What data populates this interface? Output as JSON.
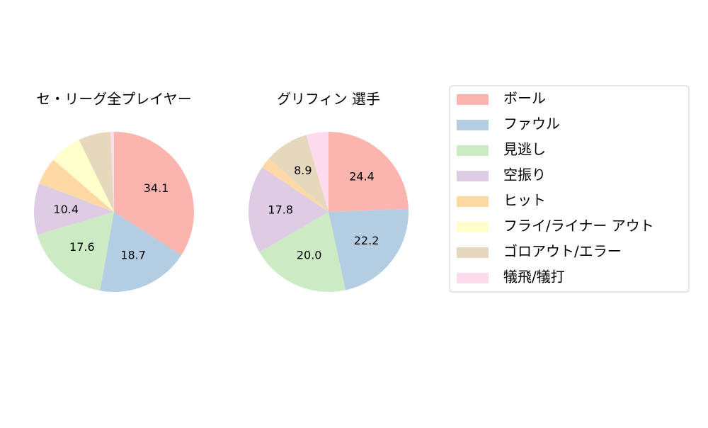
{
  "chart_data": [
    {
      "type": "pie",
      "title": "セ・リーグ全プレイヤー",
      "categories": [
        "ボール",
        "ファウル",
        "見逃し",
        "空振り",
        "ヒット",
        "フライ/ライナー アウト",
        "ゴロアウト/エラー",
        "犠飛/犠打"
      ],
      "colors": [
        "#fbb4ae",
        "#b3cde3",
        "#ccebc5",
        "#decbe4",
        "#fed9a6",
        "#ffffcc",
        "#e5d8bd",
        "#fddaec"
      ],
      "values": [
        34.1,
        18.7,
        17.6,
        10.4,
        5.5,
        6.5,
        6.5,
        0.7
      ],
      "value_labels": [
        "34.1",
        "18.7",
        "17.6",
        "10.4",
        null,
        null,
        null,
        null
      ]
    },
    {
      "type": "pie",
      "title": "グリフィン  選手",
      "values": [
        24.4,
        22.2,
        20.0,
        17.8,
        2.2,
        0,
        8.9,
        4.5
      ],
      "value_labels": [
        "24.4",
        "22.2",
        "20.0",
        "17.8",
        null,
        null,
        "8.9",
        null
      ]
    }
  ]
}
